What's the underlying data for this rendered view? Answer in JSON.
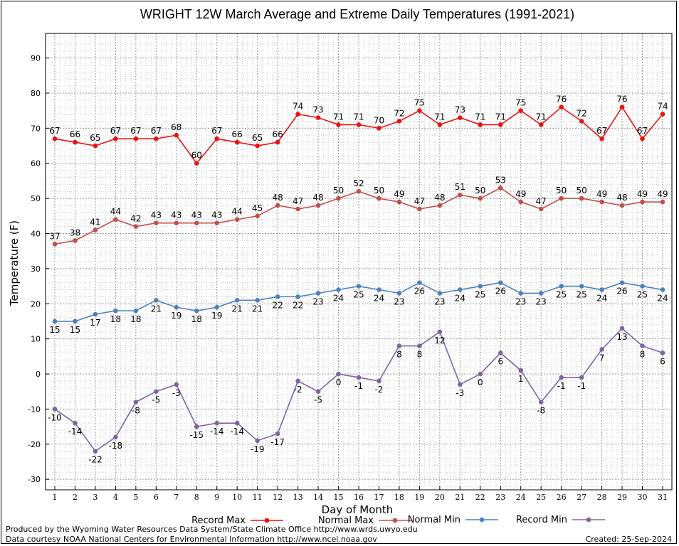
{
  "chart_data": {
    "type": "line",
    "title": "WRIGHT 12W March Average and Extreme Daily Temperatures (1991-2021)",
    "xlabel": "Day of Month",
    "ylabel": "Temperature (F)",
    "ylim": [
      -33,
      97
    ],
    "yticks": [
      -30,
      -20,
      -10,
      0,
      10,
      20,
      30,
      40,
      50,
      60,
      70,
      80,
      90
    ],
    "x": [
      1,
      2,
      3,
      4,
      5,
      6,
      7,
      8,
      9,
      10,
      11,
      12,
      13,
      14,
      15,
      16,
      17,
      18,
      19,
      20,
      21,
      22,
      23,
      24,
      25,
      26,
      27,
      28,
      29,
      30,
      31
    ],
    "grid": true,
    "legend_position": "bottom",
    "series": [
      {
        "name": "Record Max",
        "color": "#ee1111",
        "label_position": "above",
        "values": [
          67,
          66,
          65,
          67,
          67,
          67,
          68,
          60,
          67,
          66,
          65,
          66,
          74,
          73,
          71,
          71,
          70,
          72,
          75,
          71,
          73,
          71,
          71,
          75,
          71,
          76,
          72,
          67,
          76,
          67,
          74
        ]
      },
      {
        "name": "Normal Max",
        "color": "#c0504d",
        "label_position": "above",
        "values": [
          37,
          38,
          41,
          44,
          42,
          43,
          43,
          43,
          43,
          44,
          45,
          48,
          47,
          48,
          50,
          52,
          50,
          49,
          47,
          48,
          51,
          50,
          53,
          49,
          47,
          50,
          50,
          49,
          48,
          49,
          49
        ]
      },
      {
        "name": "Normal Min",
        "color": "#4f81bd",
        "label_position": "below",
        "values": [
          15,
          15,
          17,
          18,
          18,
          21,
          19,
          18,
          19,
          21,
          21,
          22,
          22,
          23,
          24,
          25,
          24,
          23,
          26,
          23,
          24,
          25,
          26,
          23,
          23,
          25,
          25,
          24,
          26,
          25,
          24
        ]
      },
      {
        "name": "Record Min",
        "color": "#8064a2",
        "label_position": "below",
        "values": [
          -10,
          -14,
          -22,
          -18,
          -8,
          -5,
          -3,
          -15,
          -14,
          -14,
          -19,
          -17,
          -2,
          -5,
          0,
          -1,
          -2,
          8,
          8,
          12,
          -3,
          0,
          6,
          1,
          -8,
          -1,
          -1,
          7,
          13,
          8,
          6
        ]
      }
    ]
  },
  "footer": {
    "produced_by": "Produced by the Wyoming Water Resources Data System/State Climate Office http://www.wrds.uwyo.edu",
    "data_courtesy": "Data courtesy NOAA National Centers for Environmental Information http://www.ncei.noaa.gov",
    "created": "Created:  25-Sep-2024"
  }
}
